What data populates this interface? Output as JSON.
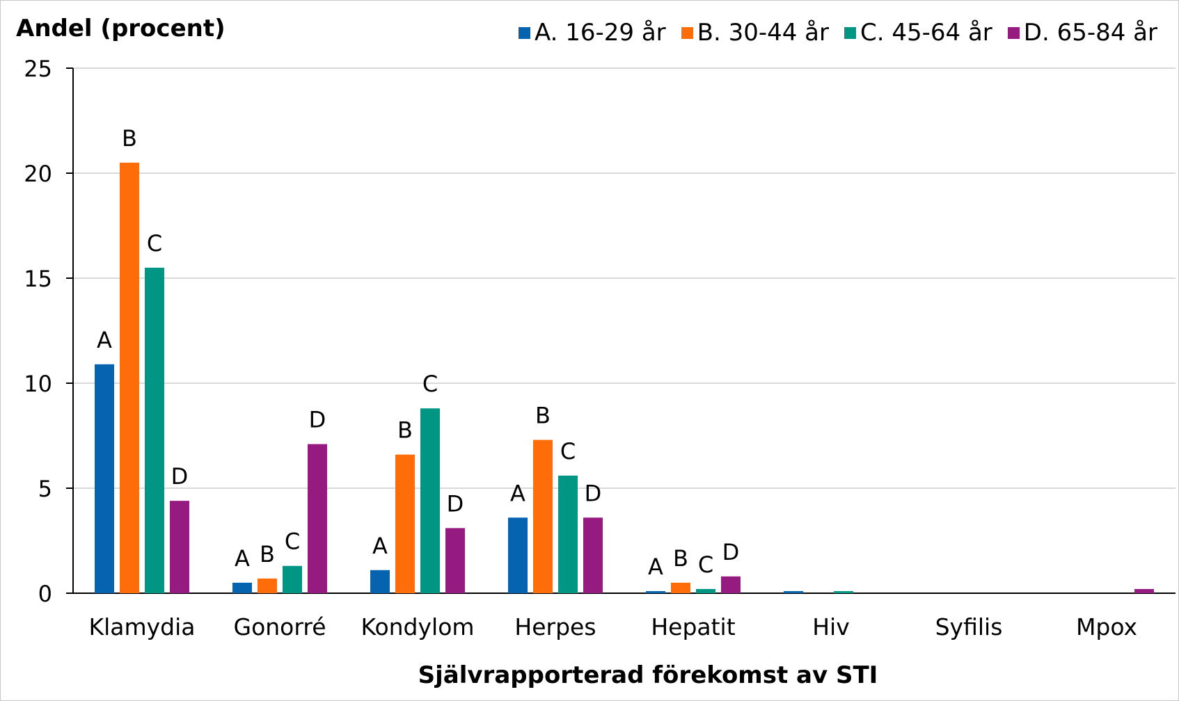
{
  "chart_data": {
    "type": "bar",
    "ylabel": "Andel (procent)",
    "xlabel": "Självrapporterad förekomst av STI",
    "ylim": [
      0,
      25
    ],
    "yticks": [
      0,
      5,
      10,
      15,
      20,
      25
    ],
    "grid": true,
    "legend_position": "top-right",
    "categories": [
      "Klamydia",
      "Gonorré",
      "Kondylom",
      "Herpes",
      "Hepatit",
      "Hiv",
      "Syfilis",
      "Mpox"
    ],
    "series": [
      {
        "name": "A. 16-29 år",
        "short": "A",
        "color": "#0563b0",
        "values": [
          10.9,
          0.5,
          1.1,
          3.6,
          0.1,
          0.1,
          0,
          0
        ]
      },
      {
        "name": "B. 30-44 år",
        "short": "B",
        "color": "#ff6c0a",
        "values": [
          20.5,
          0.7,
          6.6,
          7.3,
          0.5,
          0,
          0,
          0
        ]
      },
      {
        "name": "C. 45-64 år",
        "short": "C",
        "color": "#009684",
        "values": [
          15.5,
          1.3,
          8.8,
          5.6,
          0.2,
          0.1,
          0,
          0
        ]
      },
      {
        "name": "D. 65-84 år",
        "short": "D",
        "color": "#951b81",
        "values": [
          4.4,
          7.1,
          3.1,
          3.6,
          0.8,
          0,
          0,
          0.2
        ]
      }
    ],
    "bar_letter_labels_on_categories": [
      "Klamydia",
      "Gonorré",
      "Kondylom",
      "Herpes",
      "Hepatit"
    ]
  }
}
